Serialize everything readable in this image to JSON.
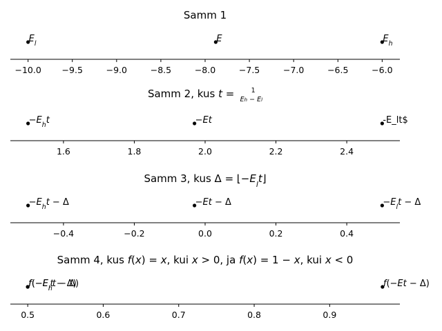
{
  "chart_data": [
    {
      "type": "scatter",
      "title_plain": "Samm 1",
      "title_rich": [
        {
          "t": "Samm 1"
        }
      ],
      "xlim": [
        -10.2,
        -5.8
      ],
      "xticks": [
        -10.0,
        -9.5,
        -9.0,
        -8.5,
        -8.0,
        -7.5,
        -7.0,
        -6.5,
        -6.0
      ],
      "xtick_labels": [
        "−10.0",
        "−9.5",
        "−9.0",
        "−8.5",
        "−8.0",
        "−7.5",
        "−7.0",
        "−6.5",
        "−6.0"
      ],
      "points": [
        {
          "x": -10.0,
          "y": 0,
          "label_plain": "E_l",
          "label_rich": [
            {
              "t": "E",
              "i": true
            },
            {
              "t": "l",
              "i": true,
              "sub": true
            }
          ]
        },
        {
          "x": -7.88,
          "y": 0,
          "label_plain": "E",
          "label_rich": [
            {
              "t": "E",
              "i": true
            }
          ]
        },
        {
          "x": -6.0,
          "y": 0,
          "label_plain": "E_h",
          "label_rich": [
            {
              "t": "E",
              "i": true
            },
            {
              "t": "h",
              "i": true,
              "sub": true
            }
          ]
        }
      ]
    },
    {
      "type": "scatter",
      "title_plain": "Samm 2, kus t = 1/(E_h − E_l)",
      "title_rich": [
        {
          "t": "Samm 2, kus "
        },
        {
          "t": "t",
          "i": true
        },
        {
          "t": " = "
        },
        {
          "frac": [
            [
              {
                "t": "1"
              }
            ],
            [
              {
                "t": "E",
                "i": true
              },
              {
                "t": "h",
                "i": true,
                "sub": true
              },
              {
                "t": " − "
              },
              {
                "t": "E",
                "i": true
              },
              {
                "t": "l",
                "i": true,
                "sub": true
              }
            ]
          ]
        }
      ],
      "xlim": [
        1.45,
        2.55
      ],
      "xticks": [
        1.6,
        1.8,
        2.0,
        2.2,
        2.4
      ],
      "xtick_labels": [
        "1.6",
        "1.8",
        "2.0",
        "2.2",
        "2.4"
      ],
      "points": [
        {
          "x": 1.5,
          "y": 0,
          "label_plain": "−E_h t",
          "label_rich": [
            {
              "t": "−"
            },
            {
              "t": "E",
              "i": true
            },
            {
              "t": "h",
              "i": true,
              "sub": true
            },
            {
              "t": "t",
              "i": true
            }
          ]
        },
        {
          "x": 1.97,
          "y": 0,
          "label_plain": "−Et",
          "label_rich": [
            {
              "t": "−"
            },
            {
              "t": "Et",
              "i": true
            }
          ]
        },
        {
          "x": 2.5,
          "y": 0,
          "label_plain": "-E_lt$",
          "label_rich": [
            {
              "t": "-E_lt$"
            }
          ]
        }
      ]
    },
    {
      "type": "scatter",
      "title_plain": "Samm 3, kus Δ = ⌊−E_l t⌋",
      "title_rich": [
        {
          "t": "Samm 3, kus Δ = ⌊−"
        },
        {
          "t": "E",
          "i": true
        },
        {
          "t": "l",
          "i": true,
          "sub": true
        },
        {
          "t": "t",
          "i": true
        },
        {
          "t": "⌋"
        }
      ],
      "xlim": [
        -0.55,
        0.55
      ],
      "xticks": [
        -0.4,
        -0.2,
        0.0,
        0.2,
        0.4
      ],
      "xtick_labels": [
        "−0.4",
        "−0.2",
        "0.0",
        "0.2",
        "0.4"
      ],
      "points": [
        {
          "x": -0.5,
          "y": 0,
          "label_plain": "−E_h t − Δ",
          "label_rich": [
            {
              "t": "−"
            },
            {
              "t": "E",
              "i": true
            },
            {
              "t": "h",
              "i": true,
              "sub": true
            },
            {
              "t": "t",
              "i": true
            },
            {
              "t": " − Δ"
            }
          ]
        },
        {
          "x": -0.03,
          "y": 0,
          "label_plain": "−Et − Δ",
          "label_rich": [
            {
              "t": "−"
            },
            {
              "t": "Et",
              "i": true
            },
            {
              "t": " − Δ"
            }
          ]
        },
        {
          "x": 0.5,
          "y": 0,
          "label_plain": "−E_l t − Δ",
          "label_rich": [
            {
              "t": "−"
            },
            {
              "t": "E",
              "i": true
            },
            {
              "t": "l",
              "i": true,
              "sub": true
            },
            {
              "t": "t",
              "i": true
            },
            {
              "t": " − Δ"
            }
          ]
        }
      ]
    },
    {
      "type": "scatter",
      "title_plain": "Samm 4, kus f(x) = x, kui x > 0, ja f(x) = 1 − x, kui x < 0",
      "title_rich": [
        {
          "t": "Samm 4, kus "
        },
        {
          "t": "f",
          "i": true
        },
        {
          "t": "("
        },
        {
          "t": "x",
          "i": true
        },
        {
          "t": ") = "
        },
        {
          "t": "x",
          "i": true
        },
        {
          "t": ", kui "
        },
        {
          "t": "x",
          "i": true
        },
        {
          "t": " > 0, ja "
        },
        {
          "t": "f",
          "i": true
        },
        {
          "t": "("
        },
        {
          "t": "x",
          "i": true
        },
        {
          "t": ") = 1 − "
        },
        {
          "t": "x",
          "i": true
        },
        {
          "t": ", kui "
        },
        {
          "t": "x",
          "i": true
        },
        {
          "t": " < 0"
        }
      ],
      "xlim": [
        0.477,
        0.993
      ],
      "xticks": [
        0.5,
        0.6,
        0.7,
        0.8,
        0.9
      ],
      "xtick_labels": [
        "0.5",
        "0.6",
        "0.7",
        "0.8",
        "0.9"
      ],
      "points": [
        {
          "x": 0.5,
          "y": 0,
          "label_plain": "f(−E_h t − Δ)",
          "label_rich": [
            {
              "t": "f",
              "i": true
            },
            {
              "t": "(−"
            },
            {
              "t": "E",
              "i": true
            },
            {
              "t": "h",
              "i": true,
              "sub": true
            },
            {
              "t": "t",
              "i": true
            },
            {
              "t": " − Δ)"
            }
          ]
        },
        {
          "x": 0.5,
          "y": 0,
          "label_plain": "f(−E_l t − Δ)",
          "label_rich": [
            {
              "t": "f",
              "i": true
            },
            {
              "t": "(−"
            },
            {
              "t": "E",
              "i": true
            },
            {
              "t": "l",
              "i": true,
              "sub": true
            },
            {
              "t": "t",
              "i": true
            },
            {
              "t": " − Δ)"
            }
          ]
        },
        {
          "x": 0.97,
          "y": 0,
          "label_plain": "f(−Et − Δ)",
          "label_rich": [
            {
              "t": "f",
              "i": true
            },
            {
              "t": "(−"
            },
            {
              "t": "Et",
              "i": true
            },
            {
              "t": " − Δ)"
            }
          ]
        }
      ]
    }
  ]
}
